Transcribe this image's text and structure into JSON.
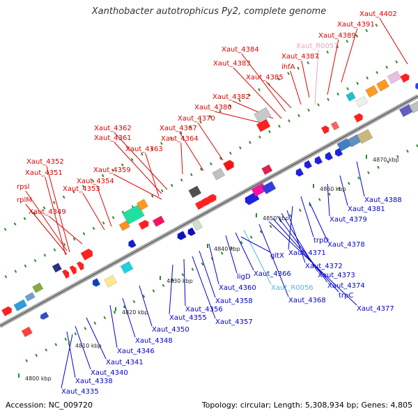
{
  "title": "Xanthobacter autotrophicus Py2, complete genome",
  "footer": {
    "accession": "Accession: NC_009720",
    "topology": "Topology: circular; Length: 5,308,934 bp; Genes: 4,805"
  },
  "colors": {
    "forward_label": "#e00000",
    "reverse_label": "#0000cc",
    "rna_label": "#4fb8e6",
    "pseudo_label": "#f0a0c8",
    "backbone": "#888888"
  },
  "ticks": [
    "4800 kbp",
    "4810 kbp",
    "4820 kbp",
    "4830 kbp",
    "4840 kbp",
    "4850 kbp",
    "4860 kbp",
    "4870 kbp"
  ],
  "labels_forward": [
    "Xaut_4402",
    "Xaut_4391",
    "Xaut_4389",
    "Xaut_R0057",
    "Xaut_4387",
    "ihfA",
    "Xaut_4384",
    "Xaut_4383",
    "Xaut_4385",
    "Xaut_4382",
    "Xaut_4380",
    "Xaut_4370",
    "Xaut_4367",
    "Xaut_4364",
    "Xaut_4362",
    "Xaut_4361",
    "Xaut_4363",
    "Xaut_4359",
    "Xaut_4352",
    "Xaut_4351",
    "Xaut_4354",
    "Xaut_4353",
    "rpsl",
    "rplM",
    "Xaut_4349"
  ],
  "labels_reverse": [
    "Xaut_4388",
    "Xaut_4381",
    "Xaut_4379",
    "trpD",
    "Xaut_4378",
    "Xaut_4371",
    "Xaut_4372",
    "Xaut_4373",
    "Xaut_4374",
    "trpC",
    "Xaut_4377",
    "Xaut_4368",
    "Xaut_R0056",
    "Xaut_4366",
    "gltX",
    "ligD",
    "Xaut_4360",
    "Xaut_4358",
    "Xaut_4356",
    "Xaut_4357",
    "Xaut_4355",
    "Xaut_4350",
    "Xaut_4348",
    "Xaut_4346",
    "Xaut_4341",
    "Xaut_4340",
    "Xaut_4338",
    "Xaut_4335"
  ]
}
